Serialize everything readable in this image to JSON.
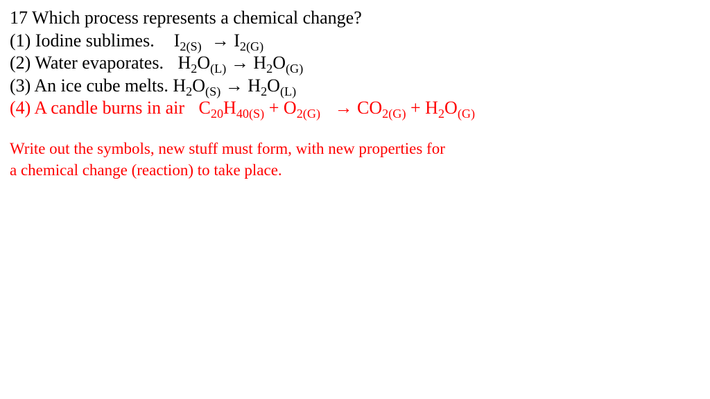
{
  "colors": {
    "text": "#000000",
    "highlight": "#ff0000",
    "background": "#ffffff"
  },
  "typography": {
    "font_family": "Times New Roman",
    "body_fontsize_pt": 20,
    "note_fontsize_pt": 17
  },
  "question": {
    "number": "17",
    "text": "Which process represents a chemical change?"
  },
  "options": [
    {
      "num": "(1)",
      "desc": "Iodine sublimes.",
      "lhs": {
        "base": "I",
        "subs": [
          "2(S)"
        ]
      },
      "rhs": {
        "base": "I",
        "subs": [
          "2(G)"
        ]
      },
      "highlight": false
    },
    {
      "num": "(2)",
      "desc": "Water evaporates.",
      "lhs": {
        "base": "H|2|O",
        "subs": [
          "(L)"
        ]
      },
      "rhs": {
        "base": "H|2|O",
        "subs": [
          "(G)"
        ]
      },
      "highlight": false
    },
    {
      "num": "(3)",
      "desc": "An ice cube melts.",
      "lhs": {
        "base": "H|2|O",
        "subs": [
          "(S)"
        ]
      },
      "rhs": {
        "base": "H|2|O",
        "subs": [
          "(L)"
        ]
      },
      "highlight": false
    },
    {
      "num": "(4)",
      "desc": "A candle burns in air",
      "lhs_text": "C|20|H|40(S)| + O|2(G)|",
      "rhs_text": "CO|2(G)|  + H|2|O|(G)|",
      "highlight": true
    }
  ],
  "arrow": "→",
  "note_line1": "Write out the symbols, new stuff must form, with new properties for",
  "note_line2": "a chemical change (reaction) to take place.",
  "q_prefix": "17 ",
  "opt1_num": "(1) ",
  "opt1_desc": "Iodine sublimes.",
  "opt2_num": "(2) ",
  "opt2_desc": "Water evaporates.",
  "opt3_num": "(3) ",
  "opt3_desc": "An ice cube melts.",
  "opt4_num": "(4) ",
  "opt4_desc": "A candle burns in air",
  "s_2S": "2(S)",
  "s_2G": "2(G)",
  "s_L": "(L)",
  "s_G": "(G)",
  "s_S": "(S)",
  "s_20": "20",
  "s_40S": "40(S)",
  "s_2": "2",
  "I": "I",
  "H": "H",
  "O": "O",
  "C": "C",
  "CO": "CO",
  "plus": " + ",
  "sp": "  "
}
